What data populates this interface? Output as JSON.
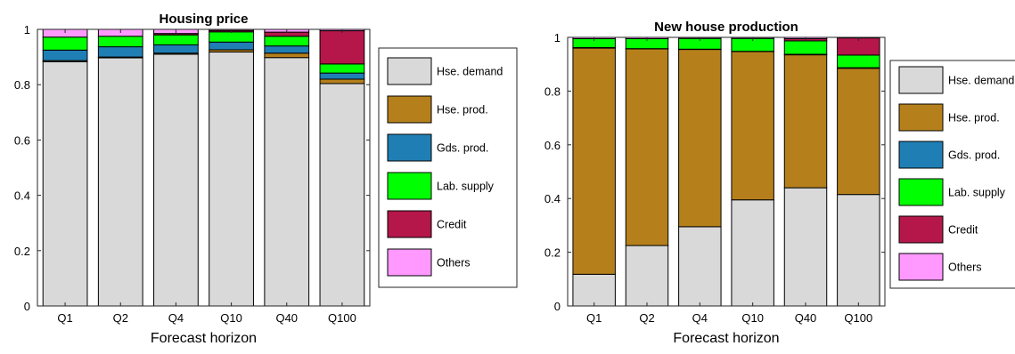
{
  "chart_data": [
    {
      "type": "bar",
      "stacked": true,
      "title": "Housing price",
      "xlabel": "Forecast horizon",
      "ylabel": "",
      "ylim": [
        0,
        1
      ],
      "yticks": [
        "0",
        "0.2",
        "0.4",
        "0.6",
        "0.8",
        "1"
      ],
      "categories": [
        "Q1",
        "Q2",
        "Q4",
        "Q10",
        "Q40",
        "Q100"
      ],
      "legend_position": "right",
      "grid": false,
      "series": [
        {
          "name": "Hse. demand",
          "color": "#d9d9d9",
          "values": [
            0.883,
            0.897,
            0.91,
            0.918,
            0.898,
            0.804
          ]
        },
        {
          "name": "Hse. prod.",
          "color": "#b5801c",
          "values": [
            0.004,
            0.003,
            0.004,
            0.008,
            0.016,
            0.016
          ]
        },
        {
          "name": "Gds. prod.",
          "color": "#1f7fb5",
          "values": [
            0.038,
            0.037,
            0.03,
            0.028,
            0.026,
            0.022
          ]
        },
        {
          "name": "Lab. supply",
          "color": "#00ff00",
          "values": [
            0.047,
            0.038,
            0.036,
            0.037,
            0.035,
            0.033
          ]
        },
        {
          "name": "Credit",
          "color": "#b5174b",
          "values": [
            0.0,
            0.0,
            0.005,
            0.005,
            0.015,
            0.12
          ]
        },
        {
          "name": "Others",
          "color": "#ff99ff",
          "values": [
            0.028,
            0.025,
            0.015,
            0.004,
            0.01,
            0.005
          ]
        }
      ]
    },
    {
      "type": "bar",
      "stacked": true,
      "title": "New house production",
      "xlabel": "Forecast horizon",
      "ylabel": "",
      "ylim": [
        0,
        1
      ],
      "yticks": [
        "0",
        "0.2",
        "0.4",
        "0.6",
        "0.8",
        "1"
      ],
      "categories": [
        "Q1",
        "Q2",
        "Q4",
        "Q10",
        "Q40",
        "Q100"
      ],
      "legend_position": "right",
      "grid": false,
      "series": [
        {
          "name": "Hse. demand",
          "color": "#d9d9d9",
          "values": [
            0.118,
            0.225,
            0.295,
            0.395,
            0.44,
            0.415
          ]
        },
        {
          "name": "Hse. prod.",
          "color": "#b5801c",
          "values": [
            0.842,
            0.732,
            0.66,
            0.552,
            0.495,
            0.47
          ]
        },
        {
          "name": "Gds. prod.",
          "color": "#1f7fb5",
          "values": [
            0.002,
            0.001,
            0.001,
            0.001,
            0.002,
            0.002
          ]
        },
        {
          "name": "Lab. supply",
          "color": "#00ff00",
          "values": [
            0.033,
            0.037,
            0.04,
            0.048,
            0.05,
            0.047
          ]
        },
        {
          "name": "Credit",
          "color": "#b5174b",
          "values": [
            0.0,
            0.0,
            0.0,
            0.0,
            0.008,
            0.064
          ]
        },
        {
          "name": "Others",
          "color": "#ff99ff",
          "values": [
            0.005,
            0.005,
            0.004,
            0.004,
            0.005,
            0.002
          ]
        }
      ]
    }
  ]
}
